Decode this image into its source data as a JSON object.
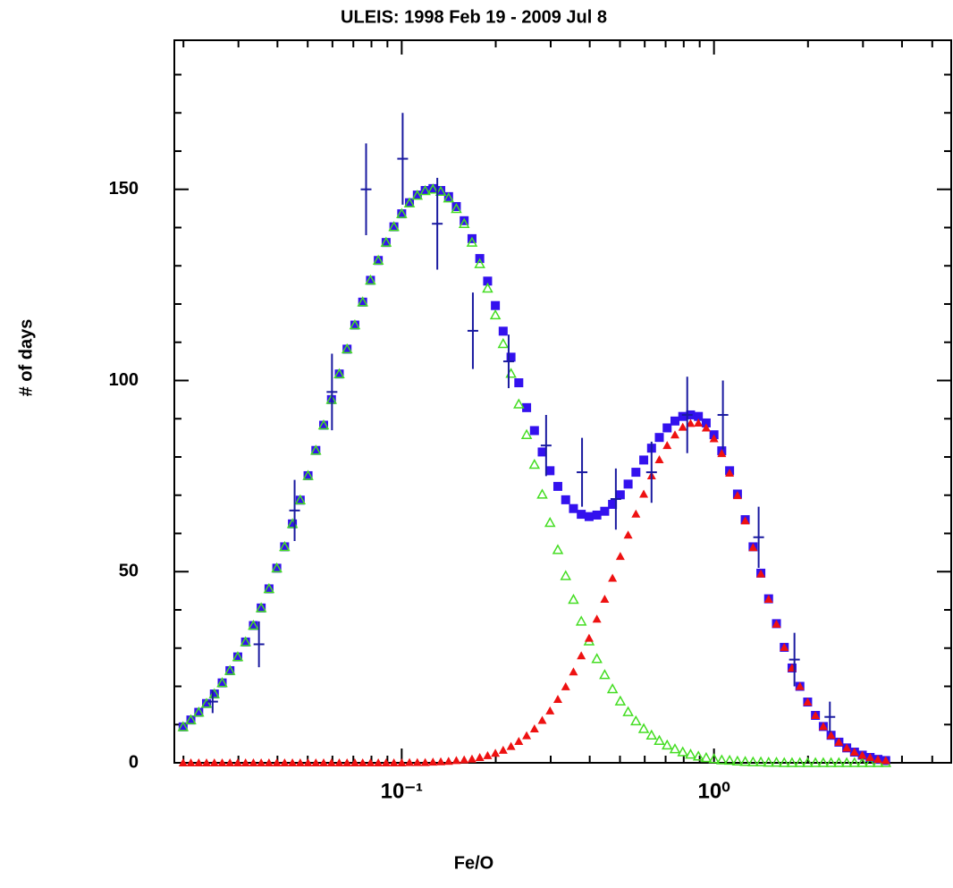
{
  "chart_data": {
    "type": "scatter",
    "title": "ULEIS: 1998 Feb 19 - 2009 Jul 8",
    "xlabel": "Fe/O",
    "ylabel": "# of days",
    "xscale": "log",
    "xlim": [
      0.0187,
      5.75
    ],
    "ylim": [
      0,
      189
    ],
    "xticks": [
      {
        "value": 0.1,
        "label": "10⁻¹"
      },
      {
        "value": 1,
        "label": "10⁰"
      }
    ],
    "xticks_minor": [
      0.02,
      0.03,
      0.04,
      0.05,
      0.06,
      0.07,
      0.08,
      0.09,
      0.2,
      0.3,
      0.4,
      0.5,
      0.6,
      0.7,
      0.8,
      0.9,
      2,
      3,
      4,
      5
    ],
    "yticks": [
      0,
      50,
      100,
      150
    ],
    "yticks_minor": [
      10,
      20,
      30,
      40,
      60,
      70,
      80,
      90,
      110,
      120,
      130,
      140,
      160,
      170,
      180
    ],
    "x": [
      0.01995,
      0.02113,
      0.02239,
      0.02371,
      0.02512,
      0.02661,
      0.02818,
      0.02985,
      0.03162,
      0.0335,
      0.03548,
      0.03758,
      0.03981,
      0.04217,
      0.04467,
      0.04732,
      0.05012,
      0.05309,
      0.05623,
      0.05957,
      0.0631,
      0.06683,
      0.07079,
      0.07499,
      0.07943,
      0.08414,
      0.08913,
      0.09441,
      0.1,
      0.1059,
      0.1122,
      0.1189,
      0.1259,
      0.1334,
      0.1413,
      0.1496,
      0.1585,
      0.1679,
      0.1778,
      0.1884,
      0.1995,
      0.2113,
      0.2239,
      0.2371,
      0.2512,
      0.2661,
      0.2818,
      0.2985,
      0.3162,
      0.335,
      0.3548,
      0.3758,
      0.3981,
      0.4217,
      0.4467,
      0.4732,
      0.5012,
      0.5309,
      0.5623,
      0.5957,
      0.631,
      0.6683,
      0.7079,
      0.7499,
      0.7943,
      0.8414,
      0.8913,
      0.9441,
      1.0,
      1.059,
      1.122,
      1.189,
      1.259,
      1.334,
      1.413,
      1.496,
      1.585,
      1.679,
      1.778,
      1.884,
      1.995,
      2.113,
      2.239,
      2.371,
      2.512,
      2.661,
      2.818,
      2.985,
      3.162,
      3.35,
      3.548
    ],
    "series": [
      {
        "marker": "square",
        "color": "#3311ee",
        "values": [
          9.4,
          11.2,
          13.2,
          15.5,
          18.0,
          20.9,
          24.1,
          27.7,
          31.6,
          35.9,
          40.5,
          45.5,
          50.9,
          56.5,
          62.5,
          68.7,
          75.1,
          81.7,
          88.3,
          95.0,
          101.7,
          108.2,
          114.5,
          120.5,
          126.2,
          131.4,
          136.1,
          140.2,
          143.6,
          146.5,
          148.5,
          149.7,
          150.2,
          149.7,
          148.1,
          145.5,
          141.8,
          137.1,
          131.9,
          126.0,
          119.6,
          112.9,
          106.1,
          99.4,
          92.9,
          86.9,
          81.3,
          76.4,
          72.3,
          68.8,
          66.5,
          65.0,
          64.4,
          64.8,
          65.8,
          67.6,
          70.1,
          72.9,
          76.0,
          79.2,
          82.3,
          85.1,
          87.6,
          89.4,
          90.6,
          91.0,
          90.6,
          88.9,
          85.8,
          81.6,
          76.4,
          70.3,
          63.6,
          56.5,
          49.6,
          42.9,
          36.4,
          30.2,
          24.8,
          20.0,
          15.9,
          12.4,
          9.5,
          7.2,
          5.4,
          3.9,
          2.8,
          2.0,
          1.4,
          0.9,
          0.6
        ]
      },
      {
        "marker": "triangle-open",
        "color": "#44dd22",
        "values": [
          9.4,
          11.2,
          13.2,
          15.5,
          18.0,
          20.9,
          24.1,
          27.7,
          31.6,
          35.9,
          40.5,
          45.5,
          50.9,
          56.5,
          62.5,
          68.7,
          75.1,
          81.7,
          88.3,
          95.0,
          101.7,
          108.2,
          114.5,
          120.5,
          126.2,
          131.4,
          136.1,
          140.2,
          143.6,
          146.4,
          148.4,
          149.6,
          150,
          149.4,
          147.7,
          144.9,
          141.0,
          136.1,
          130.5,
          124.1,
          117.1,
          109.6,
          101.8,
          93.8,
          85.8,
          78.0,
          70.2,
          62.8,
          55.7,
          48.9,
          42.7,
          37.0,
          31.8,
          27.2,
          23.0,
          19.3,
          16.1,
          13.3,
          10.9,
          8.9,
          7.2,
          5.8,
          4.6,
          3.6,
          2.8,
          2.2,
          1.7,
          1.3,
          1.0,
          0.7,
          0.6,
          0.4,
          0.3,
          0.2,
          0.2,
          0.1,
          0.1,
          0,
          0,
          0,
          0,
          0,
          0,
          0,
          0,
          0,
          0,
          0,
          0,
          0,
          0
        ]
      },
      {
        "marker": "triangle",
        "color": "#ee1111",
        "values": [
          0,
          0,
          0,
          0,
          0,
          0,
          0,
          0,
          0,
          0,
          0,
          0,
          0,
          0,
          0,
          0,
          0,
          0,
          0,
          0,
          0,
          0,
          0,
          0,
          0,
          0,
          0,
          0,
          0,
          0.1,
          0.1,
          0.1,
          0.2,
          0.3,
          0.4,
          0.6,
          0.8,
          1.0,
          1.4,
          1.9,
          2.5,
          3.3,
          4.3,
          5.6,
          7.1,
          8.9,
          11.1,
          13.6,
          16.6,
          19.9,
          23.8,
          28.0,
          32.6,
          37.6,
          42.8,
          48.3,
          54.0,
          59.6,
          65.1,
          70.3,
          75.1,
          79.3,
          83.0,
          85.8,
          87.8,
          88.8,
          88.9,
          87.6,
          84.8,
          80.9,
          75.8,
          69.9,
          63.3,
          56.3,
          49.4,
          42.8,
          36.3,
          30.2,
          24.8,
          20.0,
          15.9,
          12.4,
          9.5,
          7.2,
          5.4,
          3.9,
          2.8,
          2.0,
          1.4,
          0.9,
          0.6
        ]
      },
      {
        "marker": "errorbar",
        "color": "#1a1aa0",
        "x": [
          0.0248,
          0.0349,
          0.0454,
          0.0598,
          0.0769,
          0.1007,
          0.13,
          0.169,
          0.22,
          0.29,
          0.378,
          0.485,
          0.631,
          0.821,
          1.068,
          1.39,
          1.81,
          2.35
        ],
        "values": [
          16,
          31,
          66,
          97,
          150,
          158,
          141,
          113,
          105,
          83,
          76,
          69,
          76,
          91,
          91,
          59,
          27,
          12
        ],
        "errors": [
          3,
          6,
          8,
          10,
          12,
          12,
          12,
          10,
          7,
          8,
          9,
          8,
          8,
          10,
          9,
          8,
          7,
          4
        ]
      }
    ]
  }
}
